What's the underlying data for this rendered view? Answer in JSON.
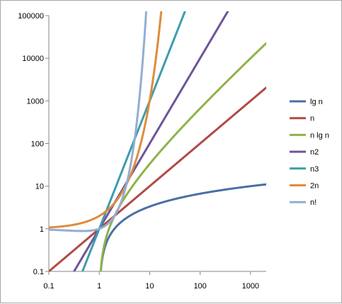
{
  "chart_data": {
    "type": "line",
    "title": "",
    "xlabel": "",
    "ylabel": "",
    "x_scale": "log",
    "y_scale": "log",
    "xlim": [
      0.1,
      2048
    ],
    "ylim": [
      0.1,
      100000
    ],
    "x_ticks": [
      0.1,
      1,
      10,
      100,
      1000
    ],
    "x_tick_labels": [
      "0.1",
      "1",
      "10",
      "100",
      "1000"
    ],
    "y_ticks": [
      0.1,
      1,
      10,
      100,
      1000,
      10000,
      100000
    ],
    "y_tick_labels": [
      "0.1",
      "1",
      "10",
      "100",
      "1000",
      "10000",
      "100000"
    ],
    "grid": false,
    "legend": "right",
    "series": [
      {
        "name": "lg n",
        "formula": "log2(n)",
        "color": "#4a6fa5"
      },
      {
        "name": "n",
        "formula": "n",
        "color": "#b04a45"
      },
      {
        "name": "n lg n",
        "formula": "n*log2(n)",
        "color": "#8fb348"
      },
      {
        "name": "n2",
        "formula": "n^2",
        "color": "#6e5596"
      },
      {
        "name": "n3",
        "formula": "n^3",
        "color": "#3f9cad"
      },
      {
        "name": "2n",
        "formula": "2^n",
        "color": "#e08b3c"
      },
      {
        "name": "n!",
        "formula": "gamma(n+1)",
        "color": "#94add3"
      }
    ]
  }
}
